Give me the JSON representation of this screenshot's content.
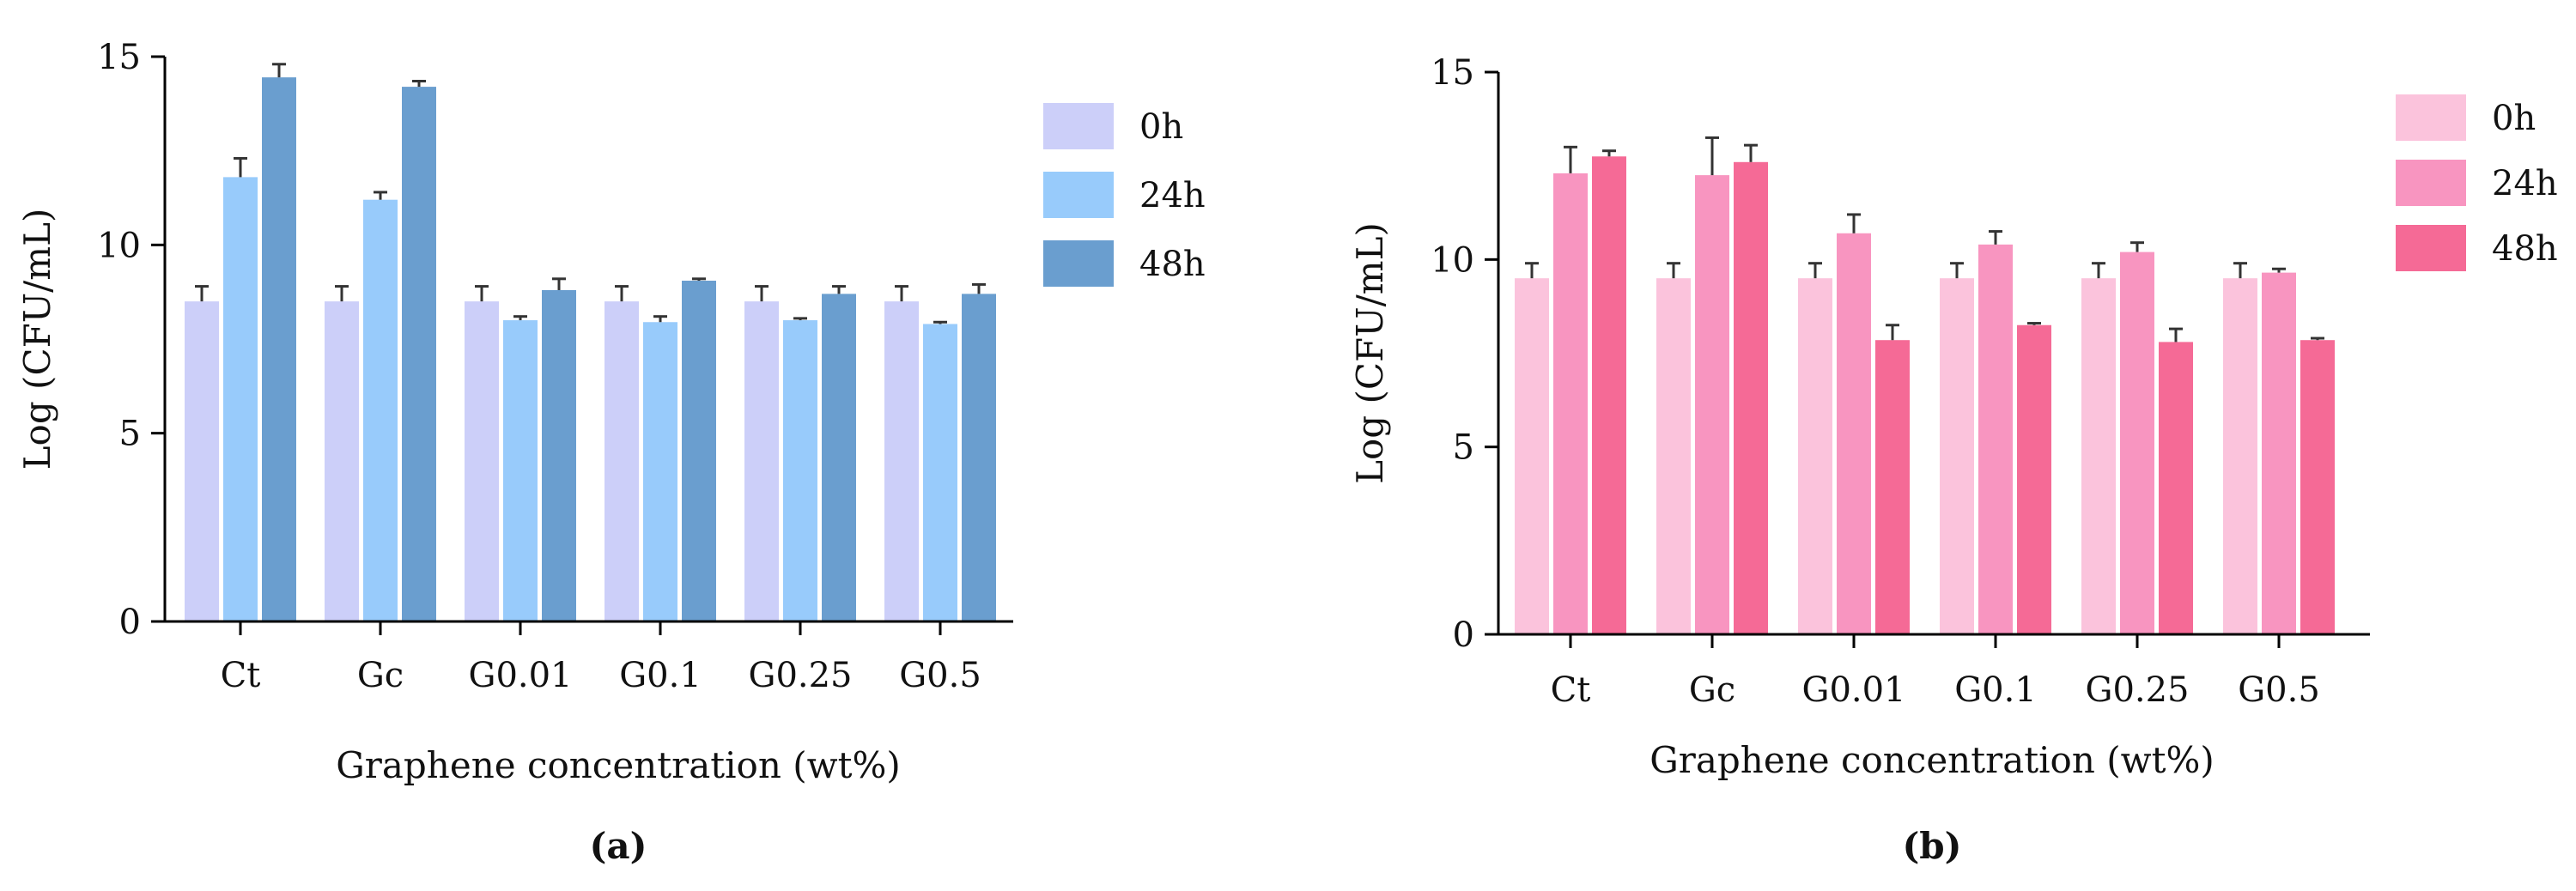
{
  "chart_data": [
    {
      "type": "bar",
      "panel_label": "(a)",
      "title": "",
      "xlabel": "Graphene concentration (wt%)",
      "ylabel": "Log (CFU/mL)",
      "ylim": [
        0,
        15
      ],
      "yticks": [
        0,
        5,
        10,
        15
      ],
      "categories": [
        "Ct",
        "Gc",
        "G0.01",
        "G0.1",
        "G0.25",
        "G0.5"
      ],
      "legend_position": "right",
      "series": [
        {
          "name": "0h",
          "color": "#cccff9",
          "values": [
            8.5,
            8.5,
            8.5,
            8.5,
            8.5,
            8.5
          ],
          "errors": [
            0.4,
            0.4,
            0.4,
            0.4,
            0.4,
            0.4
          ]
        },
        {
          "name": "24h",
          "color": "#98cbfb",
          "values": [
            11.8,
            11.2,
            8.0,
            7.95,
            8.0,
            7.9
          ],
          "errors": [
            0.5,
            0.2,
            0.1,
            0.15,
            0.05,
            0.05
          ]
        },
        {
          "name": "48h",
          "color": "#6a9ecf",
          "values": [
            14.45,
            14.2,
            8.8,
            9.05,
            8.7,
            8.7
          ],
          "errors": [
            0.35,
            0.15,
            0.3,
            0.05,
            0.2,
            0.25
          ]
        }
      ]
    },
    {
      "type": "bar",
      "panel_label": "(b)",
      "title": "",
      "xlabel": "Graphene concentration (wt%)",
      "ylabel": "Log (CFU/mL)",
      "ylim": [
        0,
        15
      ],
      "yticks": [
        0,
        5,
        10,
        15
      ],
      "categories": [
        "Ct",
        "Gc",
        "G0.01",
        "G0.1",
        "G0.25",
        "G0.5"
      ],
      "legend_position": "right",
      "series": [
        {
          "name": "0h",
          "color": "#fbc3dc",
          "values": [
            9.5,
            9.5,
            9.5,
            9.5,
            9.5,
            9.5
          ],
          "errors": [
            0.4,
            0.4,
            0.4,
            0.4,
            0.4,
            0.4
          ]
        },
        {
          "name": "24h",
          "color": "#f895c0",
          "values": [
            12.3,
            12.25,
            10.7,
            10.4,
            10.2,
            9.65
          ],
          "errors": [
            0.7,
            1.0,
            0.5,
            0.35,
            0.25,
            0.1
          ]
        },
        {
          "name": "48h",
          "color": "#f56a96",
          "values": [
            12.75,
            12.6,
            7.85,
            8.25,
            7.8,
            7.85
          ],
          "errors": [
            0.15,
            0.45,
            0.4,
            0.05,
            0.35,
            0.05
          ]
        }
      ]
    }
  ]
}
